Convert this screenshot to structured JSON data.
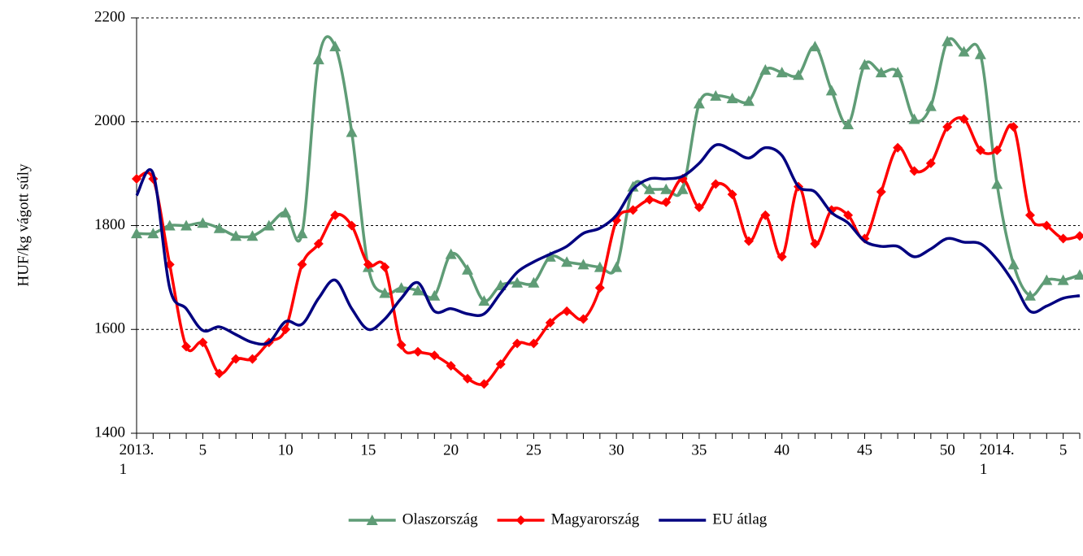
{
  "chart_data": {
    "type": "line",
    "y_label": "HUF/kg vágott súly",
    "categories": [
      "2013.\n1",
      null,
      null,
      null,
      "5",
      null,
      null,
      null,
      null,
      "10",
      null,
      null,
      null,
      null,
      "15",
      null,
      null,
      null,
      null,
      "20",
      null,
      null,
      null,
      null,
      "25",
      null,
      null,
      null,
      null,
      "30",
      null,
      null,
      null,
      null,
      "35",
      null,
      null,
      null,
      null,
      "40",
      null,
      null,
      null,
      null,
      "45",
      null,
      null,
      null,
      null,
      "50",
      null,
      null,
      "2014.\n1",
      null,
      null,
      null,
      "5",
      null
    ],
    "ylim": [
      1400,
      2200
    ],
    "yticks": [
      1400,
      1600,
      1800,
      2000,
      2200
    ],
    "grid": true,
    "grid_style": "dotted",
    "smooth": true,
    "legend": "bottom",
    "series": [
      {
        "name": "Olaszország",
        "color": "#5f9c76",
        "marker": "triangle",
        "values": [
          1785,
          1785,
          1800,
          1800,
          1805,
          1795,
          1780,
          1780,
          1800,
          1825,
          1785,
          2120,
          2145,
          1980,
          1720,
          1670,
          1680,
          1675,
          1665,
          1745,
          1715,
          1655,
          1685,
          1690,
          1690,
          1740,
          1730,
          1725,
          1720,
          1720,
          1875,
          1870,
          1870,
          1870,
          2035,
          2050,
          2045,
          2040,
          2100,
          2095,
          2090,
          2145,
          2060,
          1995,
          2110,
          2095,
          2095,
          2005,
          2030,
          2155,
          2135,
          2130,
          1880,
          1725,
          1665,
          1695,
          1695,
          1705
        ]
      },
      {
        "name": "Magyarország",
        "color": "#ff0000",
        "marker": "diamond",
        "values": [
          1890,
          1890,
          1725,
          1567,
          1575,
          1515,
          1543,
          1543,
          1575,
          1600,
          1725,
          1765,
          1820,
          1800,
          1725,
          1720,
          1570,
          1557,
          1550,
          1530,
          1505,
          1495,
          1533,
          1573,
          1573,
          1613,
          1635,
          1620,
          1680,
          1810,
          1830,
          1850,
          1845,
          1890,
          1835,
          1880,
          1860,
          1770,
          1820,
          1740,
          1875,
          1765,
          1830,
          1820,
          1775,
          1865,
          1950,
          1905,
          1920,
          1990,
          2005,
          1945,
          1945,
          1990,
          1820,
          1800,
          1775,
          1780
        ]
      },
      {
        "name": "EU átlag",
        "color": "#000080",
        "marker": null,
        "values": [
          1858,
          1900,
          1680,
          1640,
          1598,
          1605,
          1590,
          1575,
          1575,
          1615,
          1610,
          1660,
          1695,
          1640,
          1600,
          1620,
          1660,
          1690,
          1635,
          1640,
          1630,
          1630,
          1670,
          1710,
          1730,
          1745,
          1760,
          1785,
          1795,
          1820,
          1870,
          1890,
          1890,
          1895,
          1920,
          1955,
          1945,
          1930,
          1950,
          1935,
          1875,
          1865,
          1825,
          1805,
          1770,
          1760,
          1760,
          1740,
          1755,
          1775,
          1768,
          1765,
          1735,
          1690,
          1635,
          1645,
          1660,
          1665
        ]
      }
    ]
  }
}
